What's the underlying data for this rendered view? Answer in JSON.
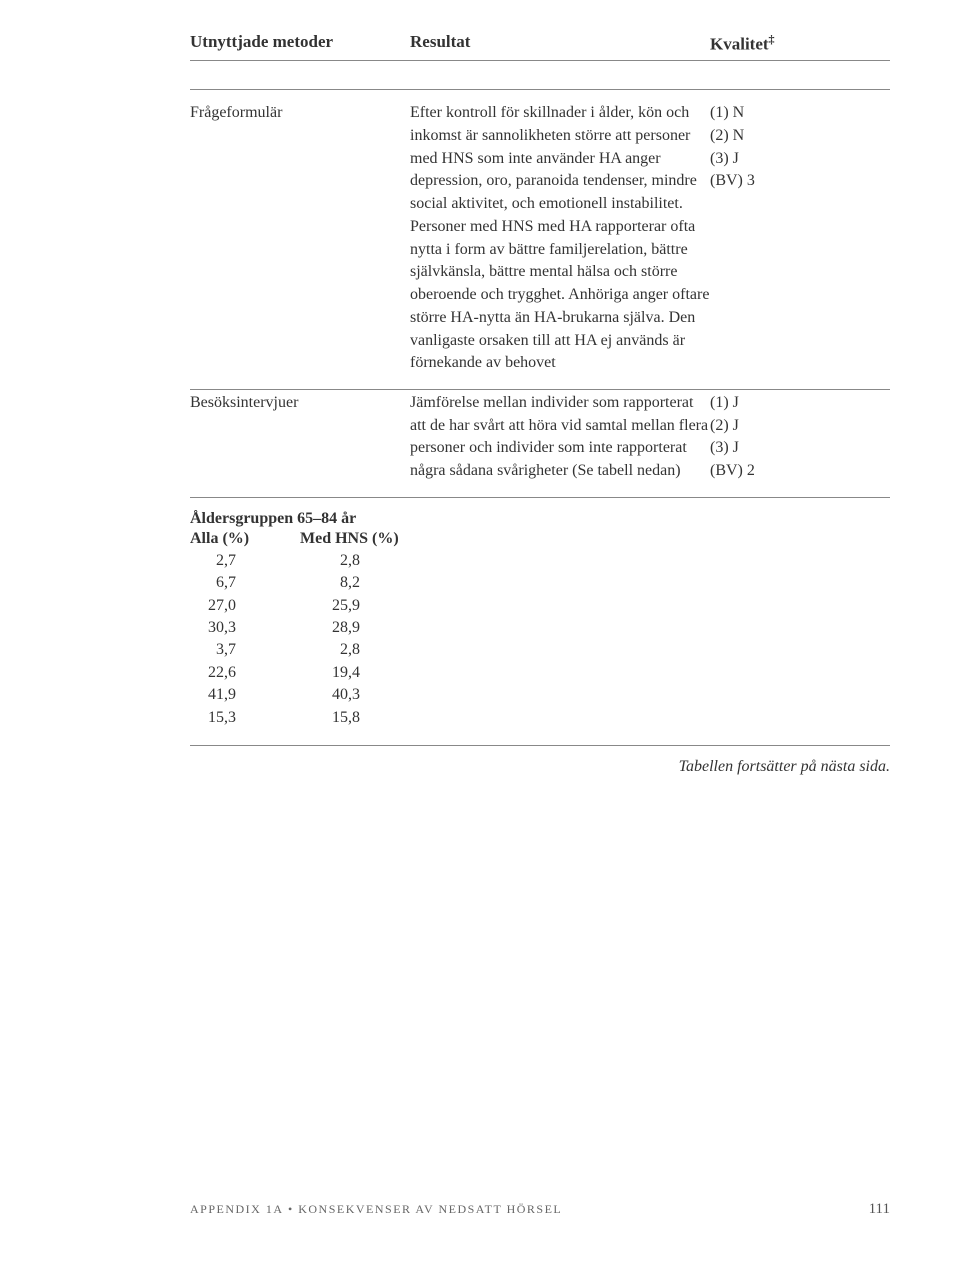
{
  "header": {
    "col1": "Utnyttjade metoder",
    "col2": "Resultat",
    "col3": "Kvalitet",
    "col3_sup": "‡"
  },
  "rows": [
    {
      "method": "Frågeformulär",
      "result": "Efter kontroll för skillnader i ålder, kön och inkomst är sannolikheten större att personer med HNS som inte använder HA anger depression, oro, paranoida tendenser, mindre social aktivitet, och emotionell instabilitet. Personer med HNS med HA rapporterar ofta nytta i form av bättre familjerelation, bättre själv­känsla, bättre mental hälsa och större oberoende och trygghet. Anhöriga anger oftare större HA-nytta än HA-brukarna själva. Den vanligaste orsaken till att HA ej används är förnekande av behovet",
      "quality": "(1) N\n(2) N\n(3) J\n(BV) 3"
    },
    {
      "method": "Besöksintervjuer",
      "result": "Jämförelse mellan individer som rapporterat att de har svårt att höra vid samtal mellan flera personer och individer som inte rappor­terat några sådana svårig­heter (Se tabell nedan)",
      "quality": "(1) J\n(2) J\n(3) J\n(BV) 2"
    }
  ],
  "age_table": {
    "title": "Åldersgruppen 65–84 år",
    "col1": "Alla (%)",
    "col2": "Med HNS (%)",
    "data": [
      [
        "2,7",
        "2,8"
      ],
      [
        "6,7",
        "8,2"
      ],
      [
        "27,0",
        "25,9"
      ],
      [
        "30,3",
        "28,9"
      ],
      [
        "3,7",
        "2,8"
      ],
      [
        "22,6",
        "19,4"
      ],
      [
        "41,9",
        "40,3"
      ],
      [
        "15,3",
        "15,8"
      ]
    ]
  },
  "continuation": "Tabellen fortsätter på nästa sida.",
  "footer": {
    "appendix": "APPENDIX 1A",
    "separator": "•",
    "subtitle": "KONSEKVENSER AV NEDSATT HÖRSEL",
    "page": "111"
  }
}
